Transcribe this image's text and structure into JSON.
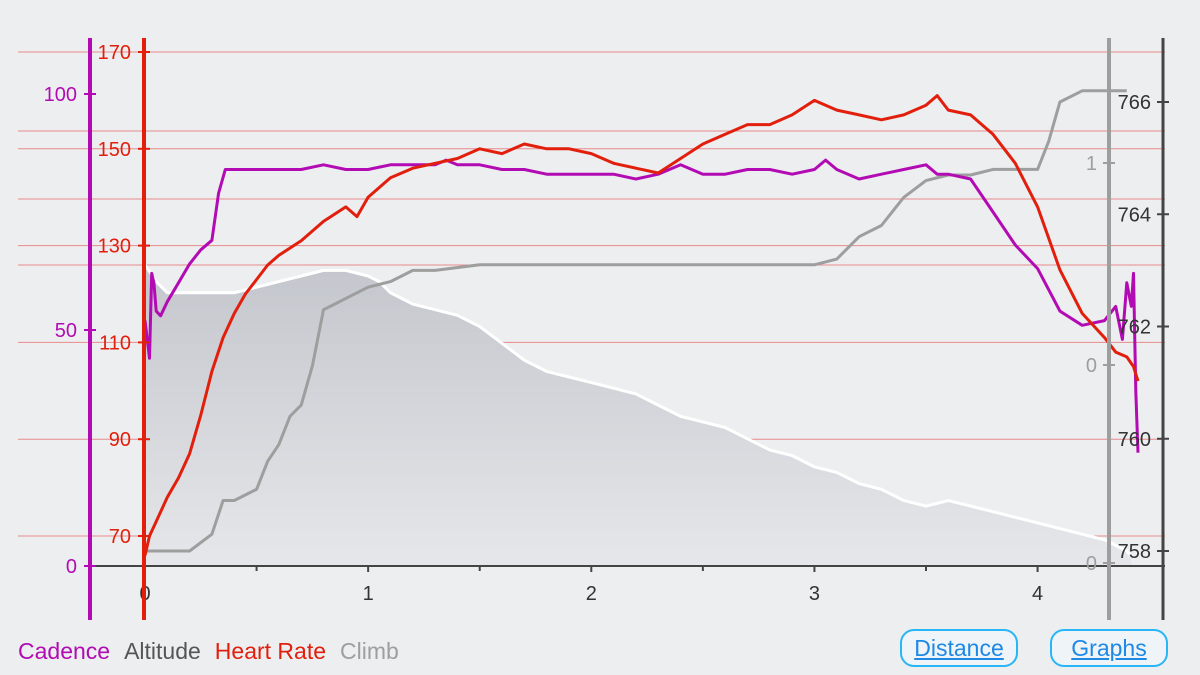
{
  "colors": {
    "cadence": "#b30bb3",
    "altitude": "#555555",
    "heart_rate": "#e21f0c",
    "climb": "#9e9e9e",
    "altitude_fill": "#d4d6dc",
    "altitude_outline": "#ffffff",
    "grid": "#e88a8a",
    "axis": "#444444",
    "button": "#1e88e5"
  },
  "legend": [
    {
      "label": "Cadence",
      "color": "#b30bb3"
    },
    {
      "label": "Altitude",
      "color": "#555555"
    },
    {
      "label": "Heart Rate",
      "color": "#e21f0c"
    },
    {
      "label": "Climb",
      "color": "#9e9e9e"
    }
  ],
  "buttons": {
    "distance": "Distance",
    "graphs": "Graphs"
  },
  "chart_data": {
    "type": "line",
    "x_axis": {
      "ticks": [
        "0",
        "1",
        "2",
        "3",
        "4"
      ],
      "xlim": [
        0,
        4.45
      ]
    },
    "axes": {
      "cadence": {
        "ticks": [
          "0",
          "50",
          "100"
        ],
        "ylim": [
          0,
          115
        ]
      },
      "heart_rate": {
        "ticks": [
          "70",
          "90",
          "110",
          "130",
          "150",
          "170"
        ],
        "ylim": [
          65,
          172
        ]
      },
      "altitude": {
        "ticks": [
          "758",
          "760",
          "762",
          "764",
          "766"
        ],
        "ylim": [
          757.9,
          766.9
        ]
      },
      "climb": {
        "ticks": [
          "0",
          "0",
          "1"
        ],
        "ylim": [
          -0.8,
          1.9
        ]
      }
    },
    "grid": true,
    "series": [
      {
        "name": "Cadence",
        "axis": "cadence",
        "x": [
          0,
          0.02,
          0.03,
          0.04,
          0.05,
          0.07,
          0.1,
          0.15,
          0.2,
          0.25,
          0.3,
          0.33,
          0.36,
          0.4,
          0.5,
          0.6,
          0.7,
          0.8,
          0.9,
          1.0,
          1.1,
          1.2,
          1.3,
          1.35,
          1.4,
          1.5,
          1.6,
          1.7,
          1.8,
          1.9,
          2.0,
          2.1,
          2.2,
          2.3,
          2.4,
          2.5,
          2.6,
          2.7,
          2.8,
          2.9,
          3.0,
          3.05,
          3.1,
          3.2,
          3.3,
          3.4,
          3.5,
          3.55,
          3.6,
          3.7,
          3.8,
          3.9,
          4.0,
          4.1,
          4.2,
          4.3,
          4.35,
          4.38,
          4.4,
          4.42,
          4.43,
          4.44,
          4.45
        ],
        "values": [
          52,
          44,
          62,
          60,
          54,
          53,
          56,
          60,
          64,
          67,
          69,
          79,
          84,
          84,
          84,
          84,
          84,
          85,
          84,
          84,
          85,
          85,
          85,
          86,
          85,
          85,
          84,
          84,
          83,
          83,
          83,
          83,
          82,
          83,
          85,
          83,
          83,
          84,
          84,
          83,
          84,
          86,
          84,
          82,
          83,
          84,
          85,
          83,
          83,
          82,
          75,
          68,
          63,
          54,
          51,
          52,
          55,
          48,
          60,
          55,
          62,
          37,
          24
        ]
      },
      {
        "name": "Heart Rate",
        "axis": "heart_rate",
        "x": [
          0,
          0.02,
          0.05,
          0.1,
          0.15,
          0.2,
          0.25,
          0.3,
          0.35,
          0.4,
          0.45,
          0.5,
          0.55,
          0.6,
          0.7,
          0.8,
          0.9,
          0.95,
          1.0,
          1.1,
          1.2,
          1.3,
          1.4,
          1.5,
          1.6,
          1.7,
          1.8,
          1.9,
          2.0,
          2.1,
          2.2,
          2.3,
          2.4,
          2.5,
          2.6,
          2.7,
          2.8,
          2.9,
          3.0,
          3.1,
          3.2,
          3.3,
          3.4,
          3.5,
          3.55,
          3.6,
          3.7,
          3.8,
          3.9,
          4.0,
          4.1,
          4.2,
          4.3,
          4.35,
          4.4,
          4.43,
          4.45
        ],
        "values": [
          66,
          70,
          73,
          78,
          82,
          87,
          95,
          104,
          111,
          116,
          120,
          123,
          126,
          128,
          131,
          135,
          138,
          136,
          140,
          144,
          146,
          147,
          148,
          150,
          149,
          151,
          150,
          150,
          149,
          147,
          146,
          145,
          148,
          151,
          153,
          155,
          155,
          157,
          160,
          158,
          157,
          156,
          157,
          159,
          161,
          158,
          157,
          153,
          147,
          138,
          125,
          116,
          111,
          108,
          107,
          105,
          102
        ]
      },
      {
        "name": "Altitude",
        "axis": "altitude",
        "x": [
          0,
          0.05,
          0.1,
          0.2,
          0.3,
          0.4,
          0.5,
          0.6,
          0.7,
          0.8,
          0.9,
          1.0,
          1.05,
          1.1,
          1.2,
          1.3,
          1.4,
          1.5,
          1.6,
          1.7,
          1.8,
          1.9,
          2.0,
          2.1,
          2.2,
          2.3,
          2.4,
          2.5,
          2.6,
          2.7,
          2.8,
          2.9,
          3.0,
          3.1,
          3.2,
          3.3,
          3.4,
          3.5,
          3.6,
          3.7,
          3.8,
          3.9,
          4.0,
          4.1,
          4.2,
          4.3,
          4.35,
          4.4,
          4.42
        ],
        "values": [
          763.1,
          762.8,
          762.6,
          762.6,
          762.6,
          762.6,
          762.7,
          762.8,
          762.9,
          763.0,
          763.0,
          762.9,
          762.8,
          762.6,
          762.4,
          762.3,
          762.2,
          762.0,
          761.7,
          761.4,
          761.2,
          761.1,
          761.0,
          760.9,
          760.8,
          760.6,
          760.4,
          760.3,
          760.2,
          760.0,
          759.8,
          759.7,
          759.5,
          759.4,
          759.2,
          759.1,
          758.9,
          758.8,
          758.9,
          758.8,
          758.7,
          758.6,
          758.5,
          758.4,
          758.3,
          758.2,
          758.1,
          758.0,
          757.9
        ]
      },
      {
        "name": "Climb",
        "axis": "altitude",
        "x": [
          0,
          0.2,
          0.3,
          0.35,
          0.4,
          0.5,
          0.55,
          0.6,
          0.65,
          0.7,
          0.75,
          0.8,
          0.85,
          0.9,
          1.0,
          1.1,
          1.2,
          1.3,
          1.5,
          2.0,
          2.5,
          3.0,
          3.1,
          3.2,
          3.3,
          3.4,
          3.5,
          3.6,
          3.7,
          3.8,
          4.0,
          4.05,
          4.1,
          4.2,
          4.3,
          4.4
        ],
        "values": [
          758.0,
          758.0,
          758.3,
          758.9,
          758.9,
          759.1,
          759.6,
          759.9,
          760.4,
          760.6,
          761.3,
          762.3,
          762.4,
          762.5,
          762.7,
          762.8,
          763.0,
          763.0,
          763.1,
          763.1,
          763.1,
          763.1,
          763.2,
          763.6,
          763.8,
          764.3,
          764.6,
          764.7,
          764.7,
          764.8,
          764.8,
          765.3,
          766.0,
          766.2,
          766.2,
          766.2
        ]
      }
    ]
  }
}
